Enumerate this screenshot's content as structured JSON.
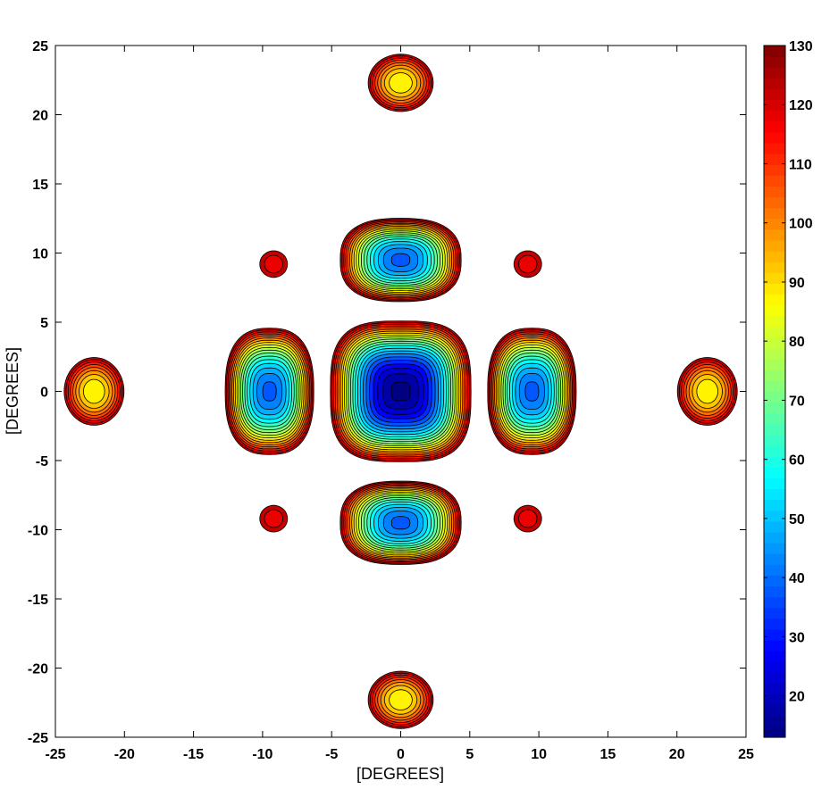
{
  "chart_data": {
    "type": "contour",
    "xlabel": "[DEGREES]",
    "ylabel": "[DEGREES]",
    "xlim": [
      -25,
      25
    ],
    "ylim": [
      -25,
      25
    ],
    "x_ticks": [
      -25,
      -20,
      -15,
      -10,
      -5,
      0,
      5,
      10,
      15,
      20,
      25
    ],
    "y_ticks": [
      25,
      20,
      15,
      10,
      5,
      0,
      -5,
      -10,
      -15,
      -20,
      -25
    ],
    "colorbar": {
      "range": [
        13,
        130
      ],
      "ticks": [
        130,
        120,
        110,
        100,
        90,
        80,
        70,
        60,
        50,
        40,
        30,
        20
      ],
      "colormap": "jet"
    },
    "fill_threshold": 130,
    "blobs": [
      {
        "cx": 0,
        "cy": 0,
        "rx": 5.2,
        "ry": 5.2,
        "min": 13,
        "shape": 3.2,
        "region": "main-lobe"
      },
      {
        "cx": -9.5,
        "cy": 0,
        "rx": 3.3,
        "ry": 4.7,
        "min": 38,
        "shape": 2.6,
        "region": "sidelobe-left"
      },
      {
        "cx": 9.5,
        "cy": 0,
        "rx": 3.3,
        "ry": 4.7,
        "min": 38,
        "shape": 2.6,
        "region": "sidelobe-right"
      },
      {
        "cx": 0,
        "cy": 9.5,
        "rx": 4.5,
        "ry": 3.1,
        "min": 38,
        "shape": 2.6,
        "region": "sidelobe-top"
      },
      {
        "cx": 0,
        "cy": -9.5,
        "rx": 4.5,
        "ry": 3.1,
        "min": 38,
        "shape": 2.6,
        "region": "sidelobe-bottom"
      },
      {
        "cx": -9.2,
        "cy": 9.2,
        "rx": 1.25,
        "ry": 1.2,
        "min": 116,
        "shape": 2.0,
        "region": "diag-nw"
      },
      {
        "cx": 9.2,
        "cy": 9.2,
        "rx": 1.25,
        "ry": 1.2,
        "min": 116,
        "shape": 2.0,
        "region": "diag-ne"
      },
      {
        "cx": -9.2,
        "cy": -9.2,
        "rx": 1.25,
        "ry": 1.2,
        "min": 116,
        "shape": 2.0,
        "region": "diag-sw"
      },
      {
        "cx": 9.2,
        "cy": -9.2,
        "rx": 1.25,
        "ry": 1.2,
        "min": 116,
        "shape": 2.0,
        "region": "diag-se"
      },
      {
        "cx": -22.2,
        "cy": 0,
        "rx": 2.3,
        "ry": 2.6,
        "min": 85,
        "shape": 2.0,
        "region": "grating-left"
      },
      {
        "cx": 22.2,
        "cy": 0,
        "rx": 2.3,
        "ry": 2.6,
        "min": 85,
        "shape": 2.0,
        "region": "grating-right"
      },
      {
        "cx": 0,
        "cy": 22.3,
        "rx": 2.5,
        "ry": 2.2,
        "min": 85,
        "shape": 2.0,
        "region": "grating-top"
      },
      {
        "cx": 0,
        "cy": -22.3,
        "rx": 2.5,
        "ry": 2.2,
        "min": 85,
        "shape": 2.0,
        "region": "grating-bottom"
      }
    ]
  }
}
